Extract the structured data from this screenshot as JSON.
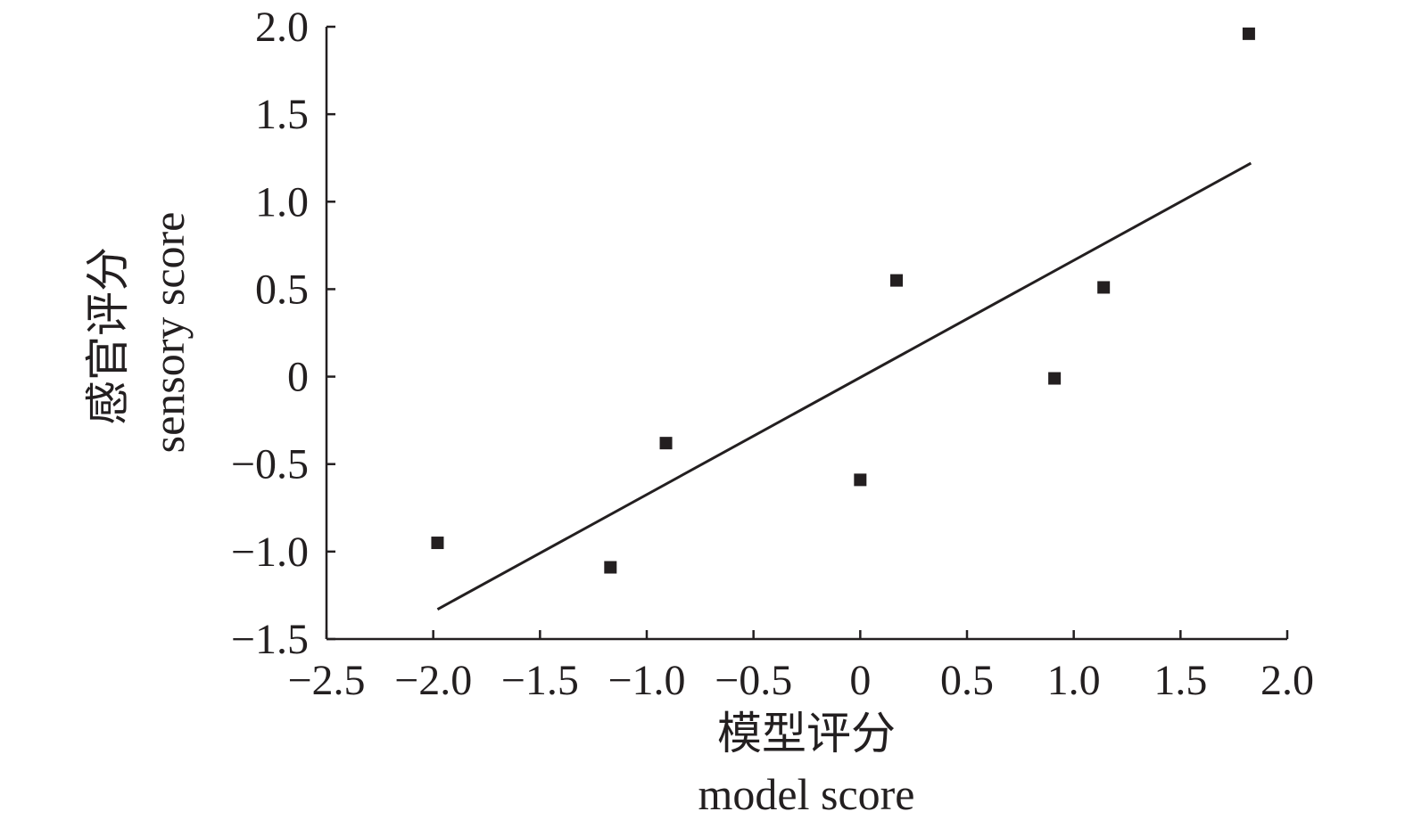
{
  "chart_data": {
    "type": "scatter",
    "xlabel": [
      "模型评分",
      "model score"
    ],
    "ylabel": [
      "感官评分",
      "sensory score"
    ],
    "xlim": [
      -2.5,
      2.0
    ],
    "ylim": [
      -1.5,
      2.0
    ],
    "x_ticks": [
      "−2.5",
      "−2.0",
      "−1.5",
      "−1.0",
      "−0.5",
      "0",
      "0.5",
      "1.0",
      "1.5",
      "2.0"
    ],
    "y_ticks": [
      "−1.5",
      "−1.0",
      "−0.5",
      "0",
      "0.5",
      "1.0",
      "1.5",
      "2.0"
    ],
    "series": [
      {
        "marker": "square",
        "color": "#231f20",
        "points": [
          {
            "x": -1.98,
            "y": -0.95
          },
          {
            "x": -1.17,
            "y": -1.09
          },
          {
            "x": -0.91,
            "y": -0.38
          },
          {
            "x": 0.0,
            "y": -0.59
          },
          {
            "x": 0.17,
            "y": 0.55
          },
          {
            "x": 0.91,
            "y": -0.01
          },
          {
            "x": 1.14,
            "y": 0.51
          },
          {
            "x": 1.82,
            "y": 1.96
          }
        ]
      }
    ],
    "trend_line": {
      "x": [
        -1.98,
        1.83
      ],
      "y": [
        -1.33,
        1.22
      ],
      "color": "#231f20"
    },
    "grid": false,
    "legend": "none"
  }
}
